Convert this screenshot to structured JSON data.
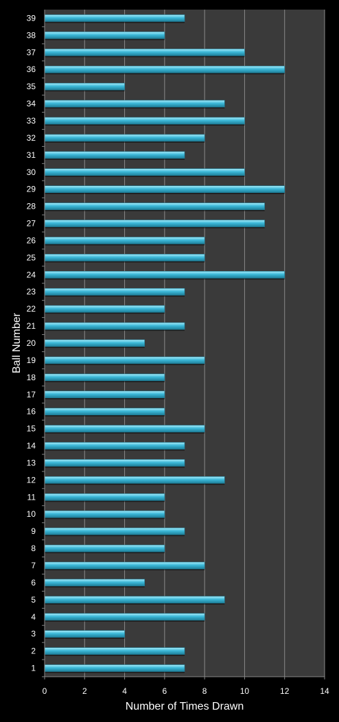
{
  "chart_data": {
    "type": "bar",
    "orientation": "horizontal",
    "title": "",
    "xlabel": "Number of Times Drawn",
    "ylabel": "Ball Number",
    "xlim": [
      0,
      14
    ],
    "xticks": [
      0,
      2,
      4,
      6,
      8,
      10,
      12,
      14
    ],
    "grid": true,
    "legend": "none",
    "categories": [
      "1",
      "2",
      "3",
      "4",
      "5",
      "6",
      "7",
      "8",
      "9",
      "10",
      "11",
      "12",
      "13",
      "14",
      "15",
      "16",
      "17",
      "18",
      "19",
      "20",
      "21",
      "22",
      "23",
      "24",
      "25",
      "26",
      "27",
      "28",
      "29",
      "30",
      "31",
      "32",
      "33",
      "34",
      "35",
      "36",
      "37",
      "38",
      "39"
    ],
    "values": [
      7,
      7,
      4,
      8,
      9,
      5,
      8,
      6,
      7,
      6,
      6,
      9,
      7,
      7,
      8,
      6,
      6,
      6,
      8,
      5,
      7,
      6,
      7,
      12,
      8,
      8,
      11,
      11,
      12,
      10,
      7,
      8,
      10,
      9,
      4,
      12,
      10,
      6,
      7
    ],
    "colors": {
      "background": "#000000",
      "plot_area": "#3a3a3a",
      "grid": "#8a8a8a",
      "bar": "#3cb8d8",
      "bar_highlight": "#a8ecfa",
      "bar_shadow": "#1e7e98",
      "text": "#ffffff"
    }
  }
}
